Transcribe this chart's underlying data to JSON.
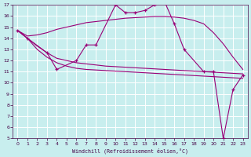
{
  "xlabel": "Windchill (Refroidissement éolien,°C)",
  "background_color": "#c8eeee",
  "grid_color": "#ffffff",
  "line_color": "#990077",
  "xlim": [
    -0.5,
    23.5
  ],
  "ylim": [
    5,
    17
  ],
  "yticks": [
    5,
    6,
    7,
    8,
    9,
    10,
    11,
    12,
    13,
    14,
    15,
    16,
    17
  ],
  "xticks": [
    0,
    1,
    2,
    3,
    4,
    5,
    6,
    7,
    8,
    9,
    10,
    11,
    12,
    13,
    14,
    15,
    16,
    17,
    18,
    19,
    20,
    21,
    22,
    23
  ],
  "main_line_x": [
    0,
    1,
    3,
    4,
    6,
    7,
    8,
    10,
    11,
    12,
    13,
    14,
    15,
    16,
    17,
    19,
    20,
    21,
    22,
    23
  ],
  "main_line_y": [
    14.7,
    14.0,
    12.7,
    11.2,
    12.0,
    13.4,
    13.4,
    17.0,
    16.3,
    16.3,
    16.5,
    17.0,
    17.3,
    15.3,
    13.0,
    11.0,
    11.0,
    5.0,
    9.4,
    10.7
  ],
  "upper_line_x": [
    0,
    1,
    2,
    3,
    4,
    5,
    6,
    7,
    8,
    9,
    10,
    11,
    12,
    13,
    14,
    15,
    16,
    17,
    18,
    19,
    20,
    21,
    22,
    23
  ],
  "upper_line_y": [
    14.7,
    14.2,
    14.3,
    14.5,
    14.8,
    15.0,
    15.2,
    15.4,
    15.5,
    15.6,
    15.7,
    15.8,
    15.85,
    15.9,
    15.95,
    15.95,
    15.9,
    15.8,
    15.6,
    15.3,
    14.5,
    13.5,
    12.3,
    11.2
  ],
  "lower_line1_x": [
    0,
    1,
    2,
    3,
    4,
    5,
    6,
    7,
    8,
    9,
    10,
    11,
    12,
    13,
    14,
    15,
    16,
    17,
    18,
    19,
    20,
    21,
    22,
    23
  ],
  "lower_line1_y": [
    14.7,
    14.0,
    13.3,
    12.7,
    12.2,
    12.0,
    11.8,
    11.7,
    11.6,
    11.5,
    11.45,
    11.4,
    11.35,
    11.3,
    11.25,
    11.2,
    11.15,
    11.1,
    11.05,
    11.0,
    10.95,
    10.9,
    10.85,
    10.8
  ],
  "lower_line2_x": [
    0,
    1,
    2,
    3,
    4,
    5,
    6,
    7,
    8,
    9,
    10,
    11,
    12,
    13,
    14,
    15,
    16,
    17,
    18,
    19,
    20,
    21,
    22,
    23
  ],
  "lower_line2_y": [
    14.7,
    14.0,
    13.0,
    12.3,
    11.8,
    11.5,
    11.3,
    11.2,
    11.15,
    11.1,
    11.05,
    11.0,
    10.95,
    10.9,
    10.85,
    10.8,
    10.75,
    10.7,
    10.65,
    10.6,
    10.55,
    10.5,
    10.45,
    10.4
  ]
}
